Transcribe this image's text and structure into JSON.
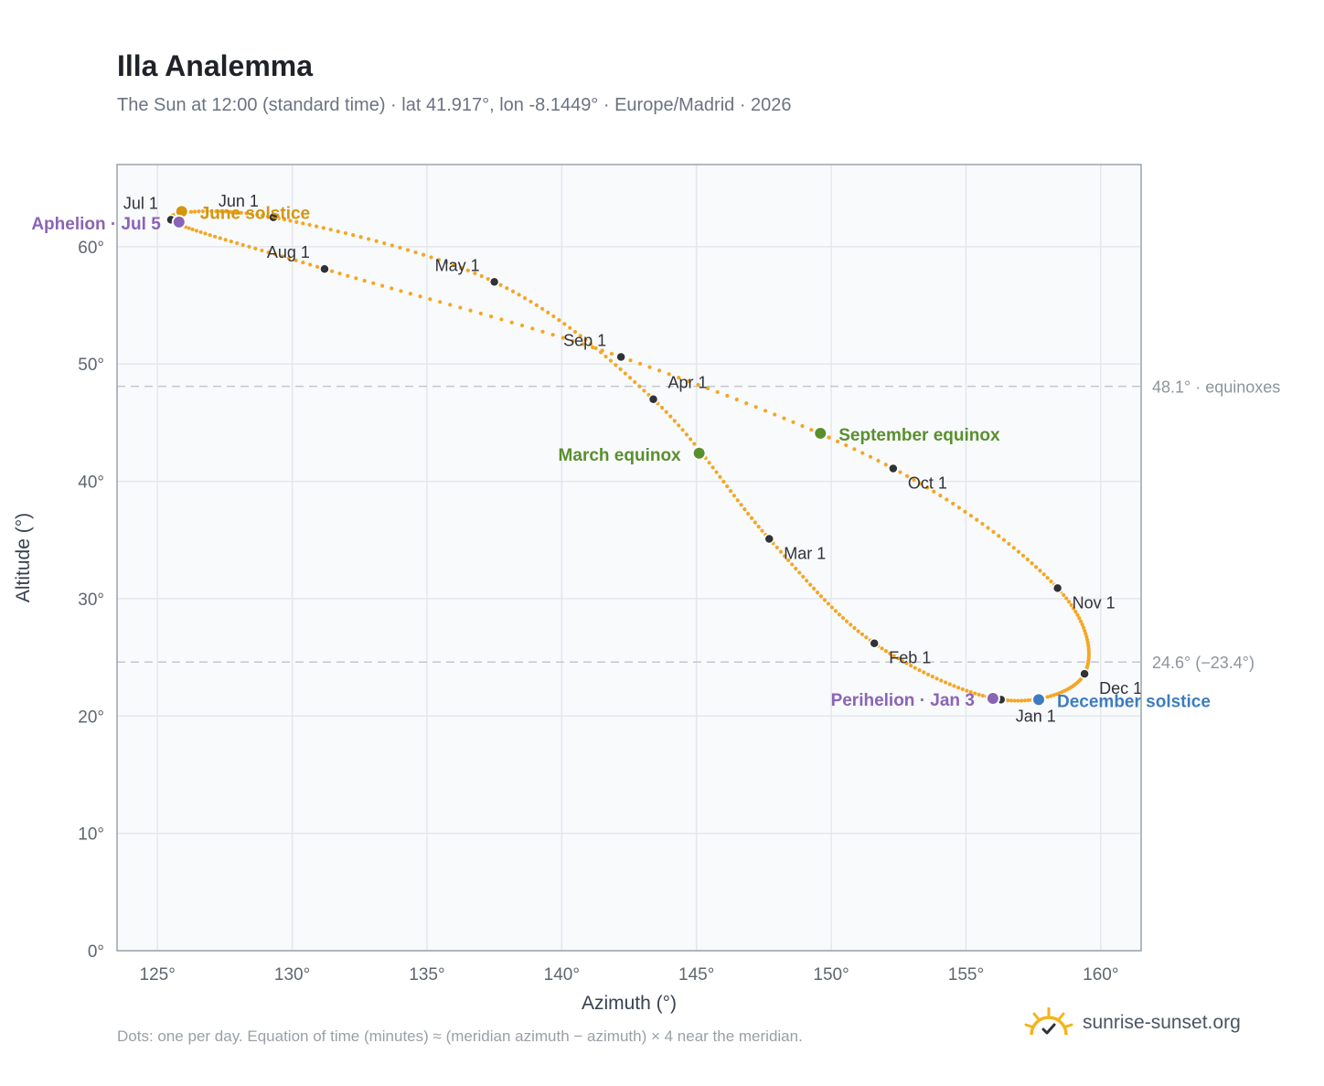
{
  "header": {
    "title": "Illa Analemma",
    "subtitle": "The Sun at 12:00 (standard time) · lat 41.917°, lon -8.1449° · Europe/Madrid · 2026"
  },
  "footer": {
    "note": "Dots: one per day. Equation of time (minutes) ≈ (meridian azimuth − azimuth) × 4 near the meridian.",
    "brand": "sunrise-sunset.org",
    "brand_icon": "sun-icon"
  },
  "colors": {
    "curve": "#f5a623",
    "month_dot": "#2f3237",
    "equinox": "#5a8f2e",
    "june_solstice": "#d4960f",
    "december_solstice": "#3d7cc0",
    "apsis": "#8b64b5",
    "plot_bg": "#f8fafc",
    "grid": "#e3e8ee",
    "ref_line": "#c2c8d0"
  },
  "chart_data": {
    "type": "scatter",
    "title": "Illa Analemma",
    "xlabel": "Azimuth (°)",
    "ylabel": "Altitude (°)",
    "xlim": [
      123.5,
      161.5
    ],
    "ylim": [
      0,
      67
    ],
    "x_ticks": [
      125,
      130,
      135,
      140,
      145,
      150,
      155,
      160
    ],
    "x_tick_labels": [
      "125°",
      "130°",
      "135°",
      "140°",
      "145°",
      "150°",
      "155°",
      "160°"
    ],
    "y_ticks": [
      0,
      10,
      20,
      30,
      40,
      50,
      60
    ],
    "y_tick_labels": [
      "0°",
      "10°",
      "20°",
      "30°",
      "40°",
      "50°",
      "60°"
    ],
    "grid": true,
    "reference_lines": [
      {
        "y": 48.1,
        "label": "48.1° · equinoxes"
      },
      {
        "y": 24.6,
        "label": "24.6° (−23.4°)"
      }
    ],
    "month_points": [
      {
        "label": "Jan 1",
        "x": 156.3,
        "y": 21.4
      },
      {
        "label": "Feb 1",
        "x": 151.6,
        "y": 26.2
      },
      {
        "label": "Mar 1",
        "x": 147.7,
        "y": 35.1
      },
      {
        "label": "Apr 1",
        "x": 143.4,
        "y": 47.0
      },
      {
        "label": "May 1",
        "x": 137.5,
        "y": 57.0
      },
      {
        "label": "Jun 1",
        "x": 129.3,
        "y": 62.5
      },
      {
        "label": "Jul 1",
        "x": 125.5,
        "y": 62.3
      },
      {
        "label": "Aug 1",
        "x": 131.2,
        "y": 58.1
      },
      {
        "label": "Sep 1",
        "x": 142.2,
        "y": 50.6
      },
      {
        "label": "Oct 1",
        "x": 152.3,
        "y": 41.1
      },
      {
        "label": "Nov 1",
        "x": 158.4,
        "y": 30.9
      },
      {
        "label": "Dec 1",
        "x": 159.4,
        "y": 23.6
      }
    ],
    "events": [
      {
        "label": "March equinox",
        "x": 145.1,
        "y": 42.4,
        "color": "#5a8f2e"
      },
      {
        "label": "September equinox",
        "x": 149.6,
        "y": 44.1,
        "color": "#5a8f2e"
      },
      {
        "label": "June solstice",
        "x": 125.9,
        "y": 63.0,
        "color": "#d4960f"
      },
      {
        "label": "December solstice",
        "x": 157.7,
        "y": 21.4,
        "color": "#3d7cc0"
      },
      {
        "label": "Aphelion · Jul 5",
        "x": 125.8,
        "y": 62.1,
        "color": "#8b64b5"
      },
      {
        "label": "Perihelion · Jan 3",
        "x": 156.0,
        "y": 21.5,
        "color": "#8b64b5"
      }
    ]
  }
}
